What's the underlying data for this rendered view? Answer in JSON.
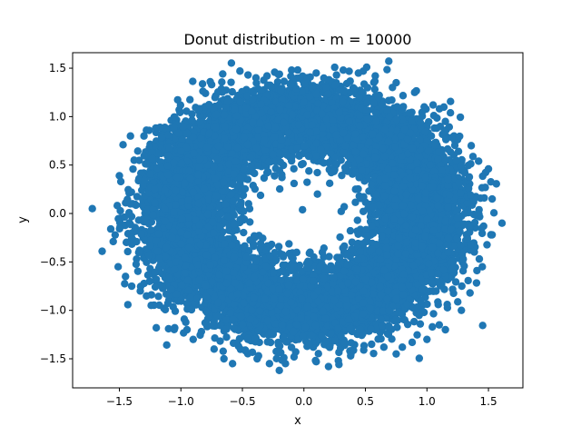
{
  "chart_data": {
    "type": "scatter",
    "title": "Donut distribution - m = 10000",
    "xlabel": "x",
    "ylabel": "y",
    "xlim": [
      -1.88,
      1.78
    ],
    "ylim": [
      -1.8,
      1.66
    ],
    "xticks": [
      -1.5,
      -1.0,
      -0.5,
      0.0,
      0.5,
      1.0,
      1.5
    ],
    "xtick_labels": [
      "−1.5",
      "−1.0",
      "−0.5",
      "0.0",
      "0.5",
      "1.0",
      "1.5"
    ],
    "yticks": [
      -1.5,
      -1.0,
      -0.5,
      0.0,
      0.5,
      1.0,
      1.5
    ],
    "ytick_labels": [
      "−1.5",
      "−1.0",
      "−0.5",
      "0.0",
      "0.5",
      "1.0",
      "1.5"
    ],
    "grid": false,
    "marker_color": "#1f77b4",
    "series": [
      {
        "n_points": 10000,
        "distribution": "donut",
        "points": [
          [
            -1.72,
            0.05
          ],
          [
            -1.64,
            -0.39
          ],
          [
            -1.57,
            -0.16
          ],
          [
            -1.55,
            -0.29
          ],
          [
            -1.51,
            -0.55
          ],
          [
            -1.5,
            0.39
          ],
          [
            -1.47,
            0.71
          ],
          [
            -1.45,
            -0.65
          ],
          [
            -1.41,
            0.8
          ],
          [
            -1.4,
            -0.75
          ],
          [
            -1.38,
            0.55
          ],
          [
            -1.36,
            -0.47
          ],
          [
            -1.33,
            -0.8
          ],
          [
            -1.3,
            0.8
          ],
          [
            -1.28,
            0.86
          ],
          [
            -1.2,
            -1.18
          ],
          [
            -1.1,
            -1.19
          ],
          [
            -1.05,
            -1.18
          ],
          [
            -0.95,
            -1.2
          ],
          [
            -0.9,
            -1.3
          ],
          [
            -0.8,
            1.24
          ],
          [
            -0.75,
            1.33
          ],
          [
            -0.73,
            -1.4
          ],
          [
            -0.66,
            1.44
          ],
          [
            -0.65,
            -1.5
          ],
          [
            -0.58,
            -1.55
          ],
          [
            -0.52,
            1.47
          ],
          [
            -0.38,
            -1.5
          ],
          [
            -0.28,
            -1.55
          ],
          [
            -0.2,
            -1.62
          ],
          [
            -0.15,
            -1.55
          ],
          [
            -0.08,
            -1.48
          ],
          [
            0.1,
            -1.53
          ],
          [
            0.2,
            -1.58
          ],
          [
            0.28,
            -1.52
          ],
          [
            0.38,
            -1.47
          ],
          [
            0.55,
            -1.35
          ],
          [
            0.65,
            -1.38
          ],
          [
            0.75,
            -1.45
          ],
          [
            0.8,
            -1.38
          ],
          [
            0.88,
            -1.33
          ],
          [
            1.0,
            -1.3
          ],
          [
            1.1,
            -1.15
          ],
          [
            1.15,
            -1.2
          ],
          [
            1.28,
            -1.0
          ],
          [
            1.35,
            -0.82
          ],
          [
            1.45,
            -0.55
          ],
          [
            1.52,
            -0.22
          ],
          [
            1.61,
            -0.1
          ],
          [
            1.53,
            0.15
          ],
          [
            1.5,
            0.46
          ],
          [
            1.42,
            0.54
          ],
          [
            1.36,
            0.7
          ],
          [
            1.22,
            0.8
          ],
          [
            1.15,
            0.95
          ],
          [
            1.05,
            1.12
          ],
          [
            0.9,
            1.25
          ],
          [
            0.75,
            1.35
          ],
          [
            0.58,
            1.42
          ],
          [
            0.51,
            1.51
          ],
          [
            0.32,
            1.48
          ],
          [
            0.1,
            1.45
          ],
          [
            -0.1,
            1.48
          ],
          [
            -0.3,
            1.42
          ],
          [
            0.11,
            0.2
          ],
          [
            -0.08,
            0.31
          ],
          [
            0.42,
            0.25
          ],
          [
            0.45,
            0.18
          ],
          [
            -0.45,
            0.1
          ],
          [
            -0.52,
            0.04
          ],
          [
            -0.5,
            -0.05
          ],
          [
            -0.4,
            -0.25
          ],
          [
            0.05,
            -0.4
          ],
          [
            0.15,
            -0.4
          ],
          [
            -0.1,
            -0.45
          ],
          [
            0.35,
            -0.42
          ],
          [
            0.48,
            -0.35
          ],
          [
            0.52,
            0.05
          ],
          [
            0.55,
            -0.1
          ],
          [
            -0.3,
            0.42
          ],
          [
            0.25,
            0.45
          ],
          [
            0.08,
            0.55
          ],
          [
            -0.18,
            0.4
          ]
        ]
      }
    ]
  }
}
